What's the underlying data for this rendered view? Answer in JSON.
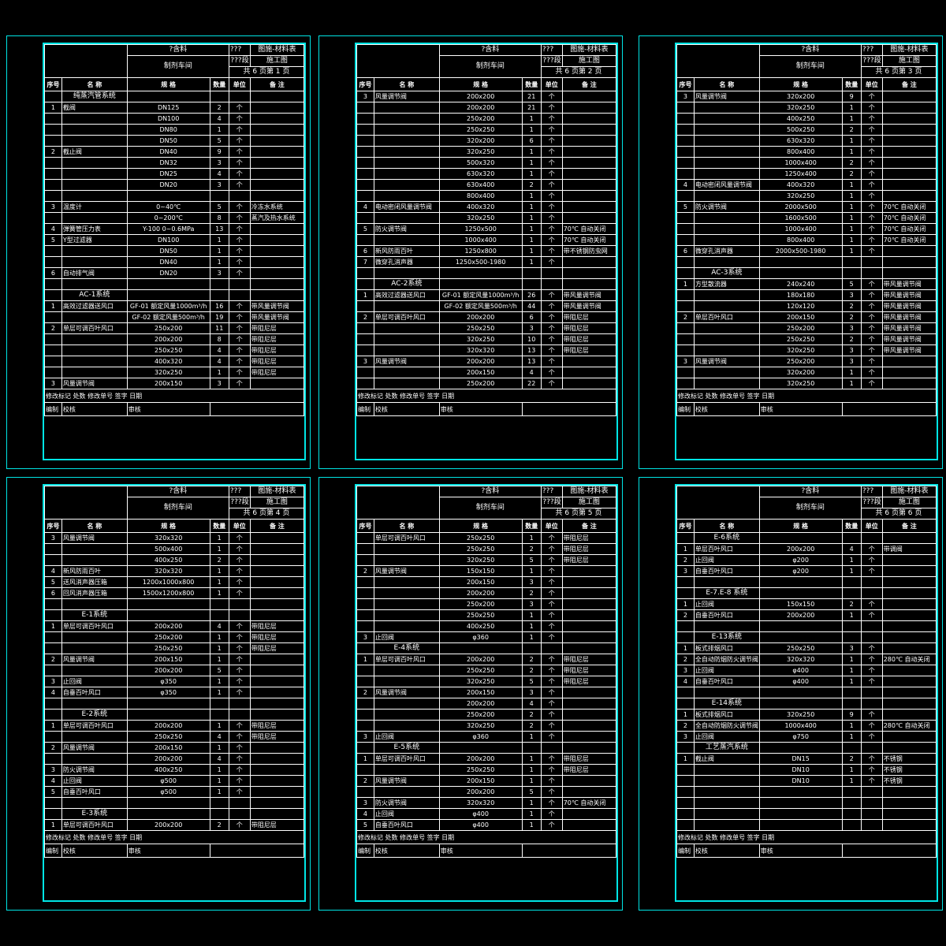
{
  "common": {
    "project": "?含料",
    "q3": "???",
    "stage": "???段",
    "type_full": "图施-材料表",
    "type_short": "施工图",
    "workshop": "制剂车间",
    "col_seq": "序号",
    "col_name": "名 称",
    "col_spec": "规 格",
    "col_qty": "数量",
    "col_unit": "单位",
    "col_note": "备 注",
    "sign1": "修改标记",
    "sign2": "处数",
    "sign3": "修改单号",
    "sign4": "签字",
    "sign5": "日期",
    "edit": "编制",
    "check": "校核",
    "review": "审核"
  },
  "sheets": [
    {
      "page": "共 6 页第 1 页",
      "rows": [
        [
          "",
          "纯蒸汽管系统",
          "",
          "",
          "",
          ""
        ],
        [
          "1",
          "截阀",
          "DN125",
          "2",
          "个",
          ""
        ],
        [
          "",
          "",
          "DN100",
          "4",
          "个",
          ""
        ],
        [
          "",
          "",
          "DN80",
          "1",
          "个",
          ""
        ],
        [
          "",
          "",
          "DN50",
          "5",
          "个",
          ""
        ],
        [
          "2",
          "截止阀",
          "DN40",
          "9",
          "个",
          ""
        ],
        [
          "",
          "",
          "DN32",
          "3",
          "个",
          ""
        ],
        [
          "",
          "",
          "DN25",
          "4",
          "个",
          ""
        ],
        [
          "",
          "",
          "DN20",
          "3",
          "个",
          ""
        ],
        [
          "",
          "",
          "",
          "",
          "",
          ""
        ],
        [
          "3",
          "温度计",
          "0~40℃",
          "5",
          "个",
          "冷冻水系统"
        ],
        [
          "",
          "",
          "0~200℃",
          "8",
          "个",
          "蒸汽及热水系统"
        ],
        [
          "4",
          "弹簧管压力表",
          "Y-100  0~0.6MPa",
          "13",
          "个",
          ""
        ],
        [
          "5",
          "Y型过滤器",
          "DN100",
          "1",
          "个",
          ""
        ],
        [
          "",
          "",
          "DN50",
          "1",
          "个",
          ""
        ],
        [
          "",
          "",
          "DN40",
          "1",
          "个",
          ""
        ],
        [
          "6",
          "自动排气阀",
          "DN20",
          "3",
          "个",
          ""
        ],
        [
          "",
          "",
          "",
          "",
          "",
          ""
        ],
        [
          "",
          "AC-1系统",
          "",
          "",
          "",
          ""
        ],
        [
          "1",
          "高效过滤器送风口",
          "GF-01 额定风量1000m³/h",
          "16",
          "个",
          "带风量调节阀"
        ],
        [
          "",
          "",
          "GF-02 额定风量500m³/h",
          "19",
          "个",
          "带风量调节阀"
        ],
        [
          "2",
          "单层可调百叶风口",
          "250x200",
          "11",
          "个",
          "带阻尼层"
        ],
        [
          "",
          "",
          "200x200",
          "8",
          "个",
          "带阻尼层"
        ],
        [
          "",
          "",
          "250x250",
          "4",
          "个",
          "带阻尼层"
        ],
        [
          "",
          "",
          "400x320",
          "4",
          "个",
          "带阻尼层"
        ],
        [
          "",
          "",
          "320x250",
          "1",
          "个",
          "带阻尼层"
        ],
        [
          "3",
          "风量调节阀",
          "200x150",
          "3",
          "个",
          ""
        ]
      ]
    },
    {
      "page": "共 6 页第 2 页",
      "rows": [
        [
          "3",
          "风量调节阀",
          "200x200",
          "21",
          "个",
          ""
        ],
        [
          "",
          "",
          "200x200",
          "21",
          "个",
          ""
        ],
        [
          "",
          "",
          "250x200",
          "1",
          "个",
          ""
        ],
        [
          "",
          "",
          "250x250",
          "1",
          "个",
          ""
        ],
        [
          "",
          "",
          "320x200",
          "6",
          "个",
          ""
        ],
        [
          "",
          "",
          "320x250",
          "1",
          "个",
          ""
        ],
        [
          "",
          "",
          "500x320",
          "1",
          "个",
          ""
        ],
        [
          "",
          "",
          "630x320",
          "1",
          "个",
          ""
        ],
        [
          "",
          "",
          "630x400",
          "2",
          "个",
          ""
        ],
        [
          "",
          "",
          "800x400",
          "1",
          "个",
          ""
        ],
        [
          "4",
          "电动密闭风量调节阀",
          "400x320",
          "1",
          "个",
          ""
        ],
        [
          "",
          "",
          "320x250",
          "1",
          "个",
          ""
        ],
        [
          "5",
          "防火调节阀",
          "1250x500",
          "1",
          "个",
          "70℃ 自动关闭"
        ],
        [
          "",
          "",
          "1000x400",
          "1",
          "个",
          "70℃ 自动关闭"
        ],
        [
          "6",
          "新风防雨百叶",
          "1250x800",
          "1",
          "个",
          "带不锈钢防虫网"
        ],
        [
          "7",
          "微穿孔消声器",
          "1250x500-1980",
          "1",
          "个",
          ""
        ],
        [
          "",
          "",
          "",
          "",
          "",
          ""
        ],
        [
          "",
          "AC-2系统",
          "",
          "",
          "",
          ""
        ],
        [
          "1",
          "高效过滤器送风口",
          "GF-01 额定风量1000m³/h",
          "26",
          "个",
          "带风量调节阀"
        ],
        [
          "",
          "",
          "GF-02 额定风量500m³/h",
          "44",
          "个",
          "带风量调节阀"
        ],
        [
          "2",
          "单层可调百叶风口",
          "200x200",
          "6",
          "个",
          "带阻尼层"
        ],
        [
          "",
          "",
          "250x250",
          "3",
          "个",
          "带阻尼层"
        ],
        [
          "",
          "",
          "320x250",
          "10",
          "个",
          "带阻尼层"
        ],
        [
          "",
          "",
          "320x320",
          "13",
          "个",
          "带阻尼层"
        ],
        [
          "3",
          "风量调节阀",
          "200x200",
          "13",
          "个",
          ""
        ],
        [
          "",
          "",
          "200x150",
          "4",
          "个",
          ""
        ],
        [
          "",
          "",
          "250x200",
          "22",
          "个",
          ""
        ]
      ]
    },
    {
      "page": "共 6 页第 3 页",
      "rows": [
        [
          "3",
          "风量调节阀",
          "320x200",
          "9",
          "个",
          ""
        ],
        [
          "",
          "",
          "320x250",
          "1",
          "个",
          ""
        ],
        [
          "",
          "",
          "400x250",
          "1",
          "个",
          ""
        ],
        [
          "",
          "",
          "500x250",
          "2",
          "个",
          ""
        ],
        [
          "",
          "",
          "630x320",
          "1",
          "个",
          ""
        ],
        [
          "",
          "",
          "800x400",
          "1",
          "个",
          ""
        ],
        [
          "",
          "",
          "1000x400",
          "2",
          "个",
          ""
        ],
        [
          "",
          "",
          "1250x400",
          "2",
          "个",
          ""
        ],
        [
          "4",
          "电动密闭风量调节阀",
          "400x320",
          "1",
          "个",
          ""
        ],
        [
          "",
          "",
          "320x250",
          "1",
          "个",
          ""
        ],
        [
          "5",
          "防火调节阀",
          "2000x500",
          "1",
          "个",
          "70℃ 自动关闭"
        ],
        [
          "",
          "",
          "1600x500",
          "1",
          "个",
          "70℃ 自动关闭"
        ],
        [
          "",
          "",
          "1000x400",
          "1",
          "个",
          "70℃ 自动关闭"
        ],
        [
          "",
          "",
          "800x400",
          "1",
          "个",
          "70℃ 自动关闭"
        ],
        [
          "6",
          "微穿孔消声器",
          "2000x500-1980",
          "1",
          "个",
          ""
        ],
        [
          "",
          "",
          "",
          "",
          "",
          ""
        ],
        [
          "",
          "AC-3系统",
          "",
          "",
          "",
          ""
        ],
        [
          "1",
          "方型散流器",
          "240x240",
          "5",
          "个",
          "带风量调节阀"
        ],
        [
          "",
          "",
          "180x180",
          "3",
          "个",
          "带风量调节阀"
        ],
        [
          "",
          "",
          "120x120",
          "2",
          "个",
          "带风量调节阀"
        ],
        [
          "2",
          "单层百叶风口",
          "200x150",
          "2",
          "个",
          "带风量调节阀"
        ],
        [
          "",
          "",
          "250x200",
          "3",
          "个",
          "带风量调节阀"
        ],
        [
          "",
          "",
          "250x250",
          "2",
          "个",
          "带风量调节阀"
        ],
        [
          "",
          "",
          "320x250",
          "3",
          "个",
          "带风量调节阀"
        ],
        [
          "3",
          "风量调节阀",
          "250x200",
          "3",
          "个",
          ""
        ],
        [
          "",
          "",
          "320x200",
          "1",
          "个",
          ""
        ],
        [
          "",
          "",
          "320x250",
          "1",
          "个",
          ""
        ]
      ]
    },
    {
      "page": "共 6 页第 4 页",
      "rows": [
        [
          "3",
          "风量调节阀",
          "320x320",
          "1",
          "个",
          ""
        ],
        [
          "",
          "",
          "500x400",
          "1",
          "个",
          ""
        ],
        [
          "",
          "",
          "400x250",
          "2",
          "个",
          ""
        ],
        [
          "4",
          "新风防雨百叶",
          "320x320",
          "1",
          "个",
          ""
        ],
        [
          "5",
          "送风消声器压箱",
          "1200x1000x800",
          "1",
          "个",
          ""
        ],
        [
          "6",
          "回风消声器压箱",
          "1500x1200x800",
          "1",
          "个",
          ""
        ],
        [
          "",
          "",
          "",
          "",
          "",
          ""
        ],
        [
          "",
          "E-1系统",
          "",
          "",
          "",
          ""
        ],
        [
          "1",
          "单层可调百叶风口",
          "200x200",
          "4",
          "个",
          "带阻尼层"
        ],
        [
          "",
          "",
          "250x200",
          "1",
          "个",
          "带阻尼层"
        ],
        [
          "",
          "",
          "250x250",
          "1",
          "个",
          "带阻尼层"
        ],
        [
          "2",
          "风量调节阀",
          "200x150",
          "1",
          "个",
          ""
        ],
        [
          "",
          "",
          "200x200",
          "5",
          "个",
          ""
        ],
        [
          "3",
          "止回阀",
          "φ350",
          "1",
          "个",
          ""
        ],
        [
          "4",
          "自垂百叶风口",
          "φ350",
          "1",
          "个",
          ""
        ],
        [
          "",
          "",
          "",
          "",
          "",
          ""
        ],
        [
          "",
          "E-2系统",
          "",
          "",
          "",
          ""
        ],
        [
          "1",
          "单层可调百叶风口",
          "200x200",
          "1",
          "个",
          "带阻尼层"
        ],
        [
          "",
          "",
          "250x250",
          "4",
          "个",
          "带阻尼层"
        ],
        [
          "2",
          "风量调节阀",
          "200x150",
          "1",
          "个",
          ""
        ],
        [
          "",
          "",
          "200x200",
          "4",
          "个",
          ""
        ],
        [
          "3",
          "防火调节阀",
          "400x250",
          "1",
          "个",
          ""
        ],
        [
          "4",
          "止回阀",
          "φ500",
          "1",
          "个",
          ""
        ],
        [
          "5",
          "自垂百叶风口",
          "φ500",
          "1",
          "个",
          ""
        ],
        [
          "",
          "",
          "",
          "",
          "",
          ""
        ],
        [
          "",
          "E-3系统",
          "",
          "",
          "",
          ""
        ],
        [
          "1",
          "单层可调百叶风口",
          "200x200",
          "2",
          "个",
          "带阻尼层"
        ]
      ]
    },
    {
      "page": "共 6 页第 5 页",
      "rows": [
        [
          "",
          "单层可调百叶风口",
          "250x250",
          "1",
          "个",
          "带阻尼层"
        ],
        [
          "",
          "",
          "250x250",
          "2",
          "个",
          "带阻尼层"
        ],
        [
          "",
          "",
          "320x250",
          "5",
          "个",
          "带阻尼层"
        ],
        [
          "2",
          "风量调节阀",
          "150x150",
          "1",
          "个",
          ""
        ],
        [
          "",
          "",
          "200x150",
          "3",
          "个",
          ""
        ],
        [
          "",
          "",
          "200x200",
          "2",
          "个",
          ""
        ],
        [
          "",
          "",
          "250x200",
          "3",
          "个",
          ""
        ],
        [
          "",
          "",
          "250x250",
          "1",
          "个",
          ""
        ],
        [
          "",
          "",
          "400x250",
          "1",
          "个",
          ""
        ],
        [
          "3",
          "止回阀",
          "φ360",
          "1",
          "个",
          ""
        ],
        [
          "",
          "E-4系统",
          "",
          "",
          "",
          ""
        ],
        [
          "1",
          "单层可调百叶风口",
          "200x200",
          "2",
          "个",
          "带阻尼层"
        ],
        [
          "",
          "",
          "250x250",
          "2",
          "个",
          "带阻尼层"
        ],
        [
          "",
          "",
          "320x250",
          "5",
          "个",
          "带阻尼层"
        ],
        [
          "2",
          "风量调节阀",
          "200x150",
          "3",
          "个",
          ""
        ],
        [
          "",
          "",
          "200x200",
          "4",
          "个",
          ""
        ],
        [
          "",
          "",
          "250x200",
          "2",
          "个",
          ""
        ],
        [
          "",
          "",
          "320x250",
          "2",
          "个",
          ""
        ],
        [
          "3",
          "止回阀",
          "φ360",
          "1",
          "个",
          ""
        ],
        [
          "",
          "E-5系统",
          "",
          "",
          "",
          ""
        ],
        [
          "1",
          "单层可调百叶风口",
          "200x200",
          "1",
          "个",
          "带阻尼层"
        ],
        [
          "",
          "",
          "250x250",
          "1",
          "个",
          "带阻尼层"
        ],
        [
          "2",
          "风量调节阀",
          "200x150",
          "1",
          "个",
          ""
        ],
        [
          "",
          "",
          "200x200",
          "5",
          "个",
          ""
        ],
        [
          "3",
          "防火调节阀",
          "320x320",
          "1",
          "个",
          "70℃ 自动关闭"
        ],
        [
          "4",
          "止回阀",
          "φ400",
          "1",
          "个",
          ""
        ],
        [
          "5",
          "自垂百叶风口",
          "φ400",
          "1",
          "个",
          ""
        ]
      ]
    },
    {
      "page": "共 6 页第 6 页",
      "rows": [
        [
          "",
          "E-6系统",
          "",
          "",
          "",
          ""
        ],
        [
          "1",
          "单层百叶风口",
          "200x200",
          "4",
          "个",
          "带调阀"
        ],
        [
          "2",
          "止回阀",
          "φ200",
          "1",
          "个",
          ""
        ],
        [
          "3",
          "自垂百叶风口",
          "φ200",
          "1",
          "个",
          ""
        ],
        [
          "",
          "",
          "",
          "",
          "",
          ""
        ],
        [
          "",
          "E-7.E-8 系统",
          "",
          "",
          "",
          ""
        ],
        [
          "1",
          "止回阀",
          "150x150",
          "2",
          "个",
          ""
        ],
        [
          "2",
          "自垂百叶风口",
          "200x200",
          "1",
          "个",
          ""
        ],
        [
          "",
          "",
          "",
          "",
          "",
          ""
        ],
        [
          "",
          "E-13系统",
          "",
          "",
          "",
          ""
        ],
        [
          "1",
          "板式排烟风口",
          "250x250",
          "3",
          "个",
          ""
        ],
        [
          "2",
          "全自动防烟防火调节阀",
          "320x320",
          "1",
          "个",
          "280℃ 自动关闭"
        ],
        [
          "3",
          "止回阀",
          "φ400",
          "1",
          "个",
          ""
        ],
        [
          "4",
          "自垂百叶风口",
          "φ400",
          "1",
          "个",
          ""
        ],
        [
          "",
          "",
          "",
          "",
          "",
          ""
        ],
        [
          "",
          "E-14系统",
          "",
          "",
          "",
          ""
        ],
        [
          "1",
          "板式排烟风口",
          "320x250",
          "9",
          "个",
          ""
        ],
        [
          "2",
          "全自动防烟防火调节阀",
          "1000x400",
          "1",
          "个",
          "280℃ 自动关闭"
        ],
        [
          "3",
          "止回阀",
          "φ750",
          "1",
          "个",
          ""
        ],
        [
          "",
          "工艺蒸汽系统",
          "",
          "",
          "",
          ""
        ],
        [
          "1",
          "截止阀",
          "DN15",
          "2",
          "个",
          "不锈钢"
        ],
        [
          "",
          "",
          "DN10",
          "1",
          "个",
          "不锈钢"
        ],
        [
          "",
          "",
          "DN10",
          "1",
          "个",
          "不锈钢"
        ],
        [
          "",
          "",
          "",
          "",
          "",
          ""
        ],
        [
          "",
          "",
          "",
          "",
          "",
          ""
        ],
        [
          "",
          "",
          "",
          "",
          "",
          ""
        ],
        [
          "",
          "",
          "",
          "",
          "",
          ""
        ]
      ]
    }
  ]
}
